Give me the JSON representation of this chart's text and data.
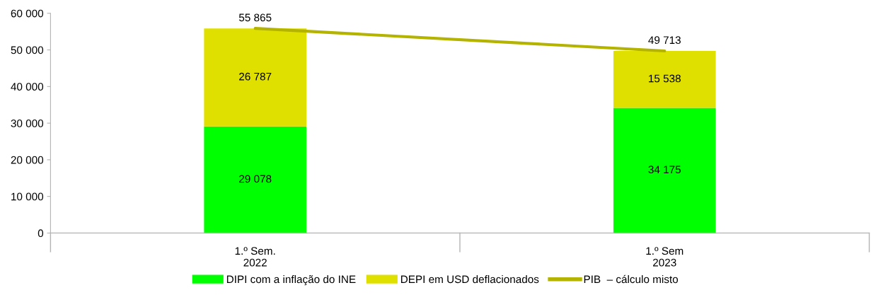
{
  "chart_data": {
    "type": "bar",
    "stacked": true,
    "categories": [
      "1.º Sem.\n2022",
      "1.º Sem\n2023"
    ],
    "series": [
      {
        "name": "DIPI com a inflação do INE",
        "color": "#00ff00",
        "values": [
          29078,
          34175
        ]
      },
      {
        "name": "DEPI em USD deflacionados",
        "color": "#e0e000",
        "values": [
          26787,
          15538
        ]
      },
      {
        "name": "PIB  – cálculo misto",
        "type": "line",
        "color": "#b4b400",
        "values": [
          55865,
          49713
        ]
      }
    ],
    "ylim": [
      0,
      60000
    ],
    "yticks": [
      {
        "value": 0,
        "label": "0"
      },
      {
        "value": 10000,
        "label": "10 000"
      },
      {
        "value": 20000,
        "label": "20 000"
      },
      {
        "value": 30000,
        "label": "30 000"
      },
      {
        "value": 40000,
        "label": "40 000"
      },
      {
        "value": 50000,
        "label": "50 000"
      },
      {
        "value": 60000,
        "label": "60 000"
      }
    ],
    "data_labels": true,
    "legend": "bottom",
    "grid": false
  }
}
